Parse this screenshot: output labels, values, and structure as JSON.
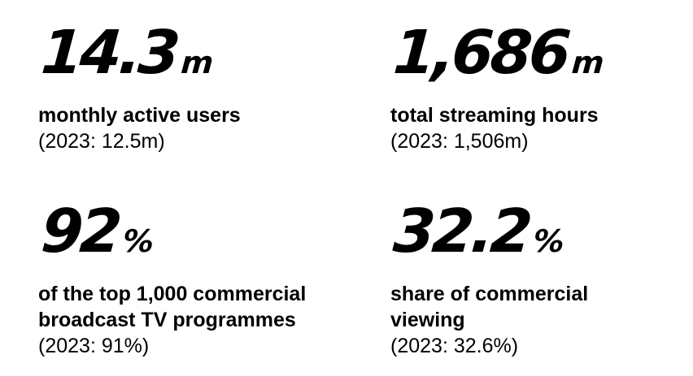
{
  "stats": [
    {
      "value": "14.3",
      "unit": "m",
      "label": "monthly active users",
      "prior": "(2023: 12.5m)"
    },
    {
      "value": "1,686",
      "unit": "m",
      "label": "total streaming hours",
      "prior": "(2023: 1,506m)"
    },
    {
      "value": "92",
      "unit": "%",
      "label_line1": "of the top 1,000 commercial",
      "label_line2": "broadcast TV programmes",
      "prior": "(2023: 91%)"
    },
    {
      "value": "32.2",
      "unit": "%",
      "label_line1": "share of commercial",
      "label_line2": "viewing",
      "prior": "(2023: 32.6%)"
    }
  ]
}
